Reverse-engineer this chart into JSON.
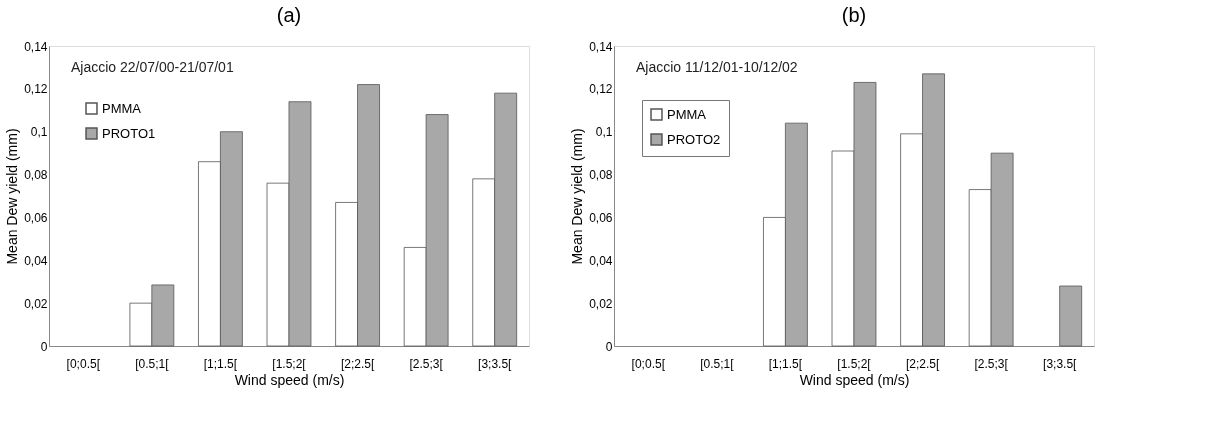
{
  "chart_data": [
    {
      "type": "bar",
      "title": "(a)",
      "xlabel": "Wind speed (m/s)",
      "ylabel": "Mean Dew yield (mm)",
      "annotations": [
        "Ajaccio 22/07/00-21/07/01"
      ],
      "categories": [
        "[0;0.5[",
        "[0.5;1[",
        "[1;1.5[",
        "[1.5;2[",
        "[2;2.5[",
        "[2.5;3[",
        "[3;3.5["
      ],
      "series": [
        {
          "name": "PMMA",
          "color": "#ffffff",
          "values": [
            null,
            0.02,
            0.086,
            0.076,
            0.067,
            0.046,
            0.078
          ]
        },
        {
          "name": "PROTO1",
          "color": "#a8a8a8",
          "values": [
            null,
            0.0285,
            0.1,
            0.114,
            0.122,
            0.108,
            0.118
          ]
        }
      ],
      "ylim": [
        0,
        0.14
      ],
      "yticks": [
        {
          "value": 0,
          "label": "0"
        },
        {
          "value": 0.02,
          "label": "0,02"
        },
        {
          "value": 0.04,
          "label": "0,04"
        },
        {
          "value": 0.06,
          "label": "0,06"
        },
        {
          "value": 0.08,
          "label": "0,08"
        },
        {
          "value": 0.1,
          "label": "0,1"
        },
        {
          "value": 0.12,
          "label": "0,12"
        },
        {
          "value": 0.14,
          "label": "0,14"
        }
      ],
      "grid": false,
      "legend": "top left"
    },
    {
      "type": "bar",
      "title": "(b)",
      "xlabel": "Wind speed (m/s)",
      "ylabel": "Mean Dew yield (mm)",
      "annotations": [
        "Ajaccio 11/12/01-10/12/02"
      ],
      "categories": [
        "[0;0.5[",
        "[0.5;1[",
        "[1;1.5[",
        "[1.5;2[",
        "[2;2.5[",
        "[2.5;3[",
        "[3;3.5["
      ],
      "series": [
        {
          "name": "PMMA",
          "color": "#ffffff",
          "values": [
            null,
            null,
            0.06,
            0.091,
            0.099,
            0.073,
            null
          ]
        },
        {
          "name": "PROTO2",
          "color": "#a8a8a8",
          "values": [
            null,
            null,
            0.104,
            0.123,
            0.127,
            0.09,
            0.028
          ]
        }
      ],
      "ylim": [
        0,
        0.14
      ],
      "yticks": [
        {
          "value": 0,
          "label": "0"
        },
        {
          "value": 0.02,
          "label": "0,02"
        },
        {
          "value": 0.04,
          "label": "0,04"
        },
        {
          "value": 0.06,
          "label": "0,06"
        },
        {
          "value": 0.08,
          "label": "0,08"
        },
        {
          "value": 0.1,
          "label": "0,1"
        },
        {
          "value": 0.12,
          "label": "0,12"
        },
        {
          "value": 0.14,
          "label": "0,14"
        }
      ],
      "grid": false,
      "legend": "top left"
    }
  ]
}
